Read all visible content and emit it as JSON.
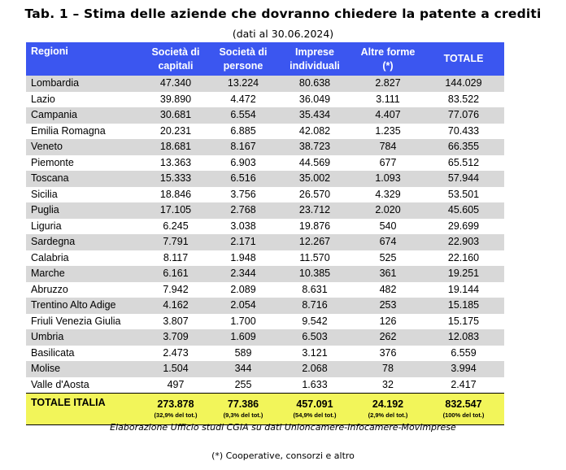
{
  "title": "Tab. 1 – Stima delle aziende che dovranno chiedere la patente a crediti",
  "subtitle": "(dati al 30.06.2024)",
  "headers": [
    "Regioni",
    "Società di capitali",
    "Società di persone",
    "Imprese individuali",
    "Altre forme (*)",
    "TOTALE"
  ],
  "rows": [
    [
      "Lombardia",
      "47.340",
      "13.224",
      "80.638",
      "2.827",
      "144.029"
    ],
    [
      "Lazio",
      "39.890",
      "4.472",
      "36.049",
      "3.111",
      "83.522"
    ],
    [
      "Campania",
      "30.681",
      "6.554",
      "35.434",
      "4.407",
      "77.076"
    ],
    [
      "Emilia Romagna",
      "20.231",
      "6.885",
      "42.082",
      "1.235",
      "70.433"
    ],
    [
      "Veneto",
      "18.681",
      "8.167",
      "38.723",
      "784",
      "66.355"
    ],
    [
      "Piemonte",
      "13.363",
      "6.903",
      "44.569",
      "677",
      "65.512"
    ],
    [
      "Toscana",
      "15.333",
      "6.516",
      "35.002",
      "1.093",
      "57.944"
    ],
    [
      "Sicilia",
      "18.846",
      "3.756",
      "26.570",
      "4.329",
      "53.501"
    ],
    [
      "Puglia",
      "17.105",
      "2.768",
      "23.712",
      "2.020",
      "45.605"
    ],
    [
      "Liguria",
      "6.245",
      "3.038",
      "19.876",
      "540",
      "29.699"
    ],
    [
      "Sardegna",
      "7.791",
      "2.171",
      "12.267",
      "674",
      "22.903"
    ],
    [
      "Calabria",
      "8.117",
      "1.948",
      "11.570",
      "525",
      "22.160"
    ],
    [
      "Marche",
      "6.161",
      "2.344",
      "10.385",
      "361",
      "19.251"
    ],
    [
      "Abruzzo",
      "7.942",
      "2.089",
      "8.631",
      "482",
      "19.144"
    ],
    [
      "Trentino Alto Adige",
      "4.162",
      "2.054",
      "8.716",
      "253",
      "15.185"
    ],
    [
      "Friuli Venezia Giulia",
      "3.807",
      "1.700",
      "9.542",
      "126",
      "15.175"
    ],
    [
      "Umbria",
      "3.709",
      "1.609",
      "6.503",
      "262",
      "12.083"
    ],
    [
      "Basilicata",
      "2.473",
      "589",
      "3.121",
      "376",
      "6.559"
    ],
    [
      "Molise",
      "1.504",
      "344",
      "2.068",
      "78",
      "3.994"
    ],
    [
      "Valle d'Aosta",
      "497",
      "255",
      "1.633",
      "32",
      "2.417"
    ]
  ],
  "total": {
    "label": "TOTALE ITALIA",
    "values": [
      "273.878",
      "77.386",
      "457.091",
      "24.192",
      "832.547"
    ],
    "percents": [
      "(32,9% del tot.)",
      "(9,3% del tot.)",
      "(54,9% del tot.)",
      "(2,9% del tot.)",
      "(100% del tot.)"
    ]
  },
  "source": "Elaborazione Ufficio studi CGIA su dati Unioncamere-Infocamere-Movimprese",
  "footnote": "(*) Cooperative, consorzi e altro",
  "colors": {
    "header_bg": "#3b56f0",
    "row_shade": "#d8d8d8",
    "total_bg": "#f2f55a"
  }
}
